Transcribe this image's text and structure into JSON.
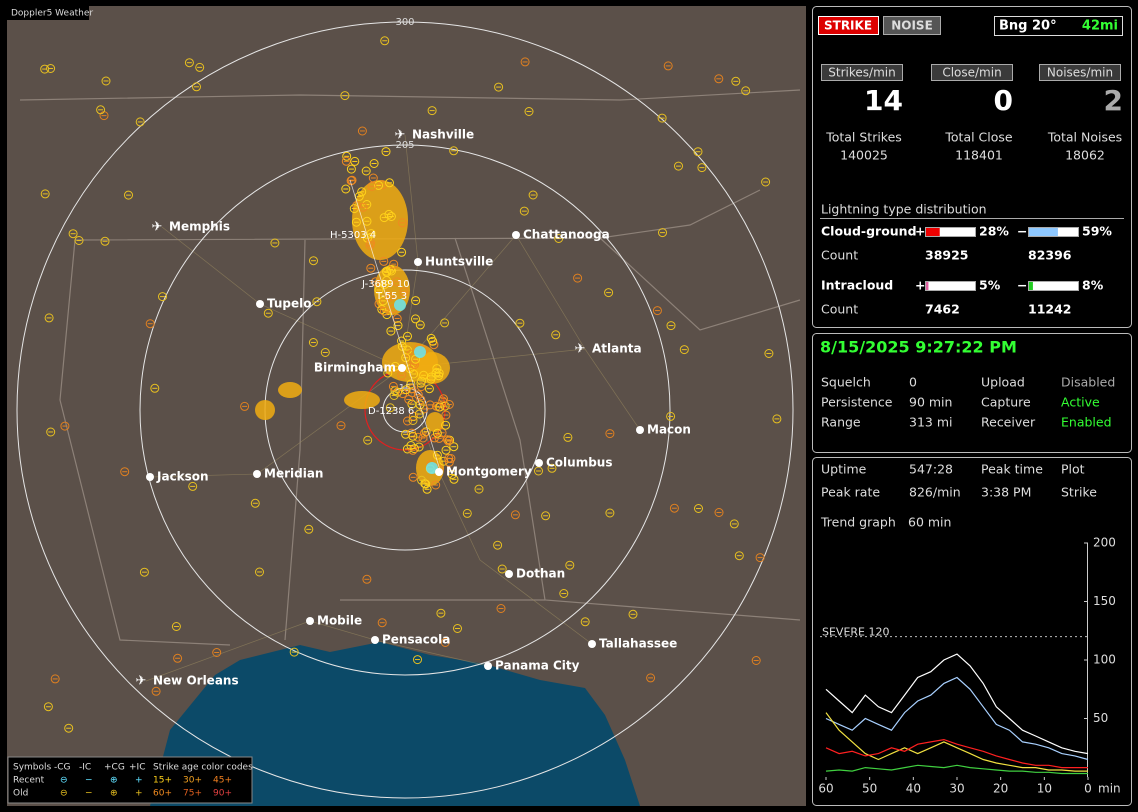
{
  "map": {
    "app_label": "Doppler5 Weather",
    "ring_labels": [
      "300",
      "205",
      "15"
    ],
    "cities": [
      "Nashville",
      "Memphis",
      "Chattanooga",
      "Huntsville",
      "Tupelo",
      "Atlanta",
      "Birmingham",
      "Macon",
      "Jackson",
      "Meridian",
      "Montgomery",
      "Columbus",
      "Dothan",
      "Mobile",
      "Pensacola",
      "Tallahassee",
      "Panama City",
      "New Orleans"
    ],
    "storm_labels": [
      "H-5303 4",
      "J-3689 10",
      "T-55 3",
      "D-1238 6"
    ],
    "legend": {
      "symbols_label": "Symbols",
      "symbol_types": [
        "-CG",
        "-IC",
        "+CG",
        "+IC"
      ],
      "age_label": "Strike age color codes",
      "rows": [
        {
          "label": "Recent",
          "ages": [
            "15+",
            "30+",
            "45+"
          ]
        },
        {
          "label": "Old",
          "ages": [
            "60+",
            "75+",
            "90+"
          ]
        }
      ]
    }
  },
  "status": {
    "mode_buttons": [
      "STRIKE",
      "NOISE"
    ],
    "bearing": "Bng 20°",
    "distance": "42mi",
    "rate_labels": [
      "Strikes/min",
      "Close/min",
      "Noises/min"
    ],
    "rates": [
      14,
      0,
      2
    ],
    "total_labels": [
      "Total Strikes",
      "Total Close",
      "Total Noises"
    ],
    "totals": [
      140025,
      118401,
      18062
    ],
    "distribution": {
      "title": "Lightning type distribution",
      "pos_sign": "+",
      "neg_sign": "−",
      "count_label": "Count",
      "rows": [
        {
          "name": "Cloud-ground",
          "pos": {
            "value": 28,
            "label": "28%"
          },
          "neg": {
            "value": 59,
            "label": "59%"
          },
          "pos_count": 38925,
          "neg_count": 82396
        },
        {
          "name": "Intracloud",
          "pos": {
            "value": 5,
            "label": "5%"
          },
          "neg": {
            "value": 8,
            "label": "8%"
          },
          "pos_count": 7462,
          "neg_count": 11242
        }
      ]
    }
  },
  "settings": {
    "datetime": "8/15/2025 9:27:22 PM",
    "rows": [
      [
        "Squelch",
        "0",
        "Upload",
        "Disabled"
      ],
      [
        "Persistence",
        "90 min",
        "Capture",
        "Active"
      ],
      [
        "Range",
        "313 mi",
        "Receiver",
        "Enabled"
      ]
    ]
  },
  "stats": {
    "rows": [
      [
        "Uptime",
        "547:28",
        "Peak time",
        "Plot"
      ],
      [
        "Peak rate",
        "826/min",
        "3:38 PM",
        "Strike"
      ]
    ],
    "trend_label": "Trend graph",
    "trend_value": "60 min"
  },
  "trend_graph": {
    "type": "line",
    "x": [
      60,
      57,
      54,
      51,
      48,
      45,
      42,
      39,
      36,
      33,
      30,
      27,
      24,
      21,
      18,
      15,
      12,
      9,
      6,
      3,
      0
    ],
    "xlim": [
      60,
      0
    ],
    "xticks": [
      60,
      50,
      40,
      30,
      20,
      10,
      0
    ],
    "x_unit": "min",
    "ylim": [
      0,
      200
    ],
    "yticks": [
      50,
      100,
      150,
      200
    ],
    "threshold": {
      "value": 120,
      "label": "SEVERE 120"
    },
    "series": [
      {
        "color": "#ffffff",
        "values": [
          75,
          65,
          55,
          70,
          60,
          55,
          70,
          85,
          90,
          100,
          105,
          95,
          80,
          60,
          50,
          40,
          35,
          30,
          25,
          22,
          20
        ]
      },
      {
        "color": "#a8d0ff",
        "values": [
          50,
          45,
          40,
          50,
          45,
          40,
          55,
          65,
          70,
          80,
          85,
          75,
          60,
          45,
          40,
          30,
          28,
          25,
          20,
          18,
          15
        ]
      },
      {
        "color": "#f0e040",
        "values": [
          55,
          40,
          30,
          20,
          15,
          20,
          25,
          20,
          25,
          30,
          25,
          20,
          15,
          12,
          10,
          8,
          8,
          6,
          6,
          5,
          5
        ]
      },
      {
        "color": "#ff2020",
        "values": [
          25,
          20,
          22,
          18,
          20,
          25,
          22,
          28,
          30,
          32,
          28,
          25,
          22,
          18,
          15,
          12,
          10,
          10,
          8,
          8,
          8
        ]
      },
      {
        "color": "#40d040",
        "values": [
          5,
          6,
          5,
          8,
          7,
          6,
          8,
          10,
          9,
          8,
          10,
          8,
          7,
          6,
          5,
          5,
          4,
          4,
          3,
          3,
          3
        ]
      }
    ]
  }
}
